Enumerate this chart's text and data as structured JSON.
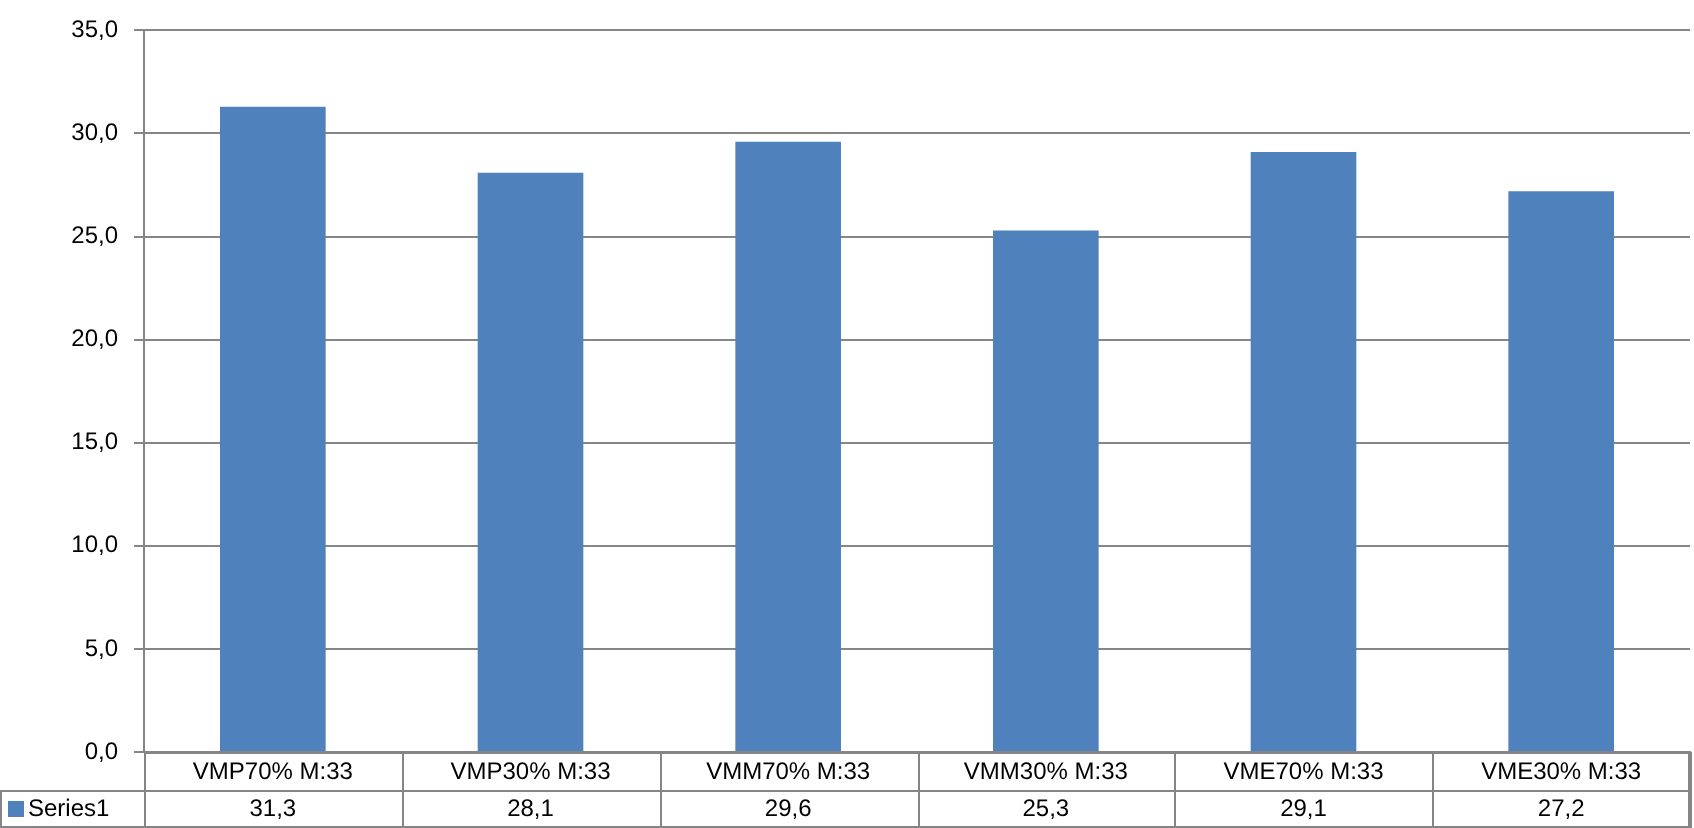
{
  "chart_data": {
    "type": "bar",
    "categories": [
      "VMP70% M:33",
      "VMP30% M:33",
      "VMM70% M:33",
      "VMM30% M:33",
      "VME70% M:33",
      "VME30% M:33"
    ],
    "series": [
      {
        "name": "Series1",
        "color": "#4f81bd",
        "values": [
          31.3,
          28.1,
          29.6,
          25.3,
          29.1,
          27.2
        ],
        "value_labels": [
          "31,3",
          "28,1",
          "29,6",
          "25,3",
          "29,1",
          "27,2"
        ]
      }
    ],
    "ylim": [
      0,
      35
    ],
    "yticks": [
      {
        "value": 0,
        "label": "0,0"
      },
      {
        "value": 5,
        "label": "5,0"
      },
      {
        "value": 10,
        "label": "10,0"
      },
      {
        "value": 15,
        "label": "15,0"
      },
      {
        "value": 20,
        "label": "20,0"
      },
      {
        "value": 25,
        "label": "25,0"
      },
      {
        "value": 30,
        "label": "30,0"
      },
      {
        "value": 35,
        "label": "35,0"
      }
    ],
    "grid": "y",
    "legend": "bottom left"
  }
}
